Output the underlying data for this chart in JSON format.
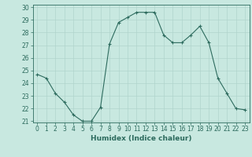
{
  "x": [
    0,
    1,
    2,
    3,
    4,
    5,
    6,
    7,
    8,
    9,
    10,
    11,
    12,
    13,
    14,
    15,
    16,
    17,
    18,
    19,
    20,
    21,
    22,
    23
  ],
  "y": [
    24.7,
    24.4,
    23.2,
    22.5,
    21.5,
    21.0,
    21.0,
    22.1,
    27.1,
    28.8,
    29.2,
    29.6,
    29.6,
    29.6,
    27.8,
    27.2,
    27.2,
    27.8,
    28.5,
    27.2,
    24.4,
    23.2,
    22.0,
    21.9
  ],
  "line_color": "#2d6b5e",
  "marker": "+",
  "background_color": "#c8e8e0",
  "grid_color": "#b0d4cc",
  "xlabel": "Humidex (Indice chaleur)",
  "ylim": [
    21,
    30
  ],
  "xlim": [
    -0.5,
    23.5
  ],
  "yticks": [
    21,
    22,
    23,
    24,
    25,
    26,
    27,
    28,
    29,
    30
  ],
  "xticks": [
    0,
    1,
    2,
    3,
    4,
    5,
    6,
    7,
    8,
    9,
    10,
    11,
    12,
    13,
    14,
    15,
    16,
    17,
    18,
    19,
    20,
    21,
    22,
    23
  ],
  "tick_color": "#2d6b5e",
  "label_fontsize": 6.5,
  "tick_fontsize": 5.5
}
